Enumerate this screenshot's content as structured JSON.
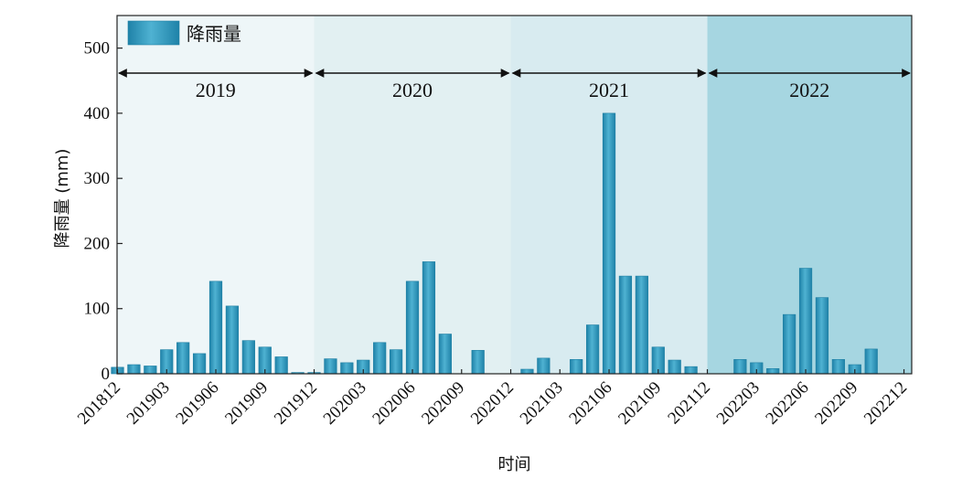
{
  "chart_data": {
    "type": "bar",
    "ylabel": "降雨量 (mm)",
    "xlabel": "时间",
    "ylim": [
      0,
      550
    ],
    "yticks": [
      0,
      100,
      200,
      300,
      400,
      500
    ],
    "legend": {
      "label": "降雨量",
      "placement": "top-left"
    },
    "grid": false,
    "colors": {
      "bar": "#2a93b9",
      "bar_highlight": "#4fb2d2",
      "bar_edge": "#1e7fa3",
      "bands": [
        "#eef6f8",
        "#e2f0f2",
        "#d8ebf0",
        "#a6d6e1"
      ]
    },
    "xtick_labels": [
      "201812",
      "201903",
      "201906",
      "201909",
      "201912",
      "202003",
      "202006",
      "202009",
      "202012",
      "202103",
      "202106",
      "202109",
      "202112",
      "202203",
      "202206",
      "202209",
      "202212"
    ],
    "periods": [
      {
        "label": "2019",
        "start": "201812",
        "end": "201912"
      },
      {
        "label": "2020",
        "start": "201912",
        "end": "202012"
      },
      {
        "label": "2021",
        "start": "202012",
        "end": "202112"
      },
      {
        "label": "2022",
        "start": "202112",
        "end": "202212"
      }
    ],
    "series": [
      {
        "name": "降雨量",
        "x": [
          "201812",
          "201901",
          "201902",
          "201903",
          "201904",
          "201905",
          "201906",
          "201907",
          "201908",
          "201909",
          "201910",
          "201911",
          "201912",
          "202001",
          "202002",
          "202003",
          "202004",
          "202005",
          "202006",
          "202007",
          "202008",
          "202009",
          "202010",
          "202011",
          "202012",
          "202101",
          "202102",
          "202103",
          "202104",
          "202105",
          "202106",
          "202107",
          "202108",
          "202109",
          "202110",
          "202111",
          "202112",
          "202201",
          "202202",
          "202203",
          "202204",
          "202205",
          "202206",
          "202207",
          "202208",
          "202209",
          "202210",
          "202211",
          "202212"
        ],
        "values": [
          10,
          14,
          12,
          37,
          48,
          31,
          142,
          104,
          51,
          41,
          26,
          2,
          2,
          23,
          17,
          21,
          48,
          37,
          142,
          172,
          61,
          0,
          36,
          0,
          0,
          7,
          24,
          0,
          22,
          75,
          400,
          150,
          150,
          41,
          21,
          11,
          0,
          0,
          22,
          17,
          8,
          91,
          162,
          117,
          22,
          14,
          38,
          0,
          0
        ]
      }
    ]
  }
}
